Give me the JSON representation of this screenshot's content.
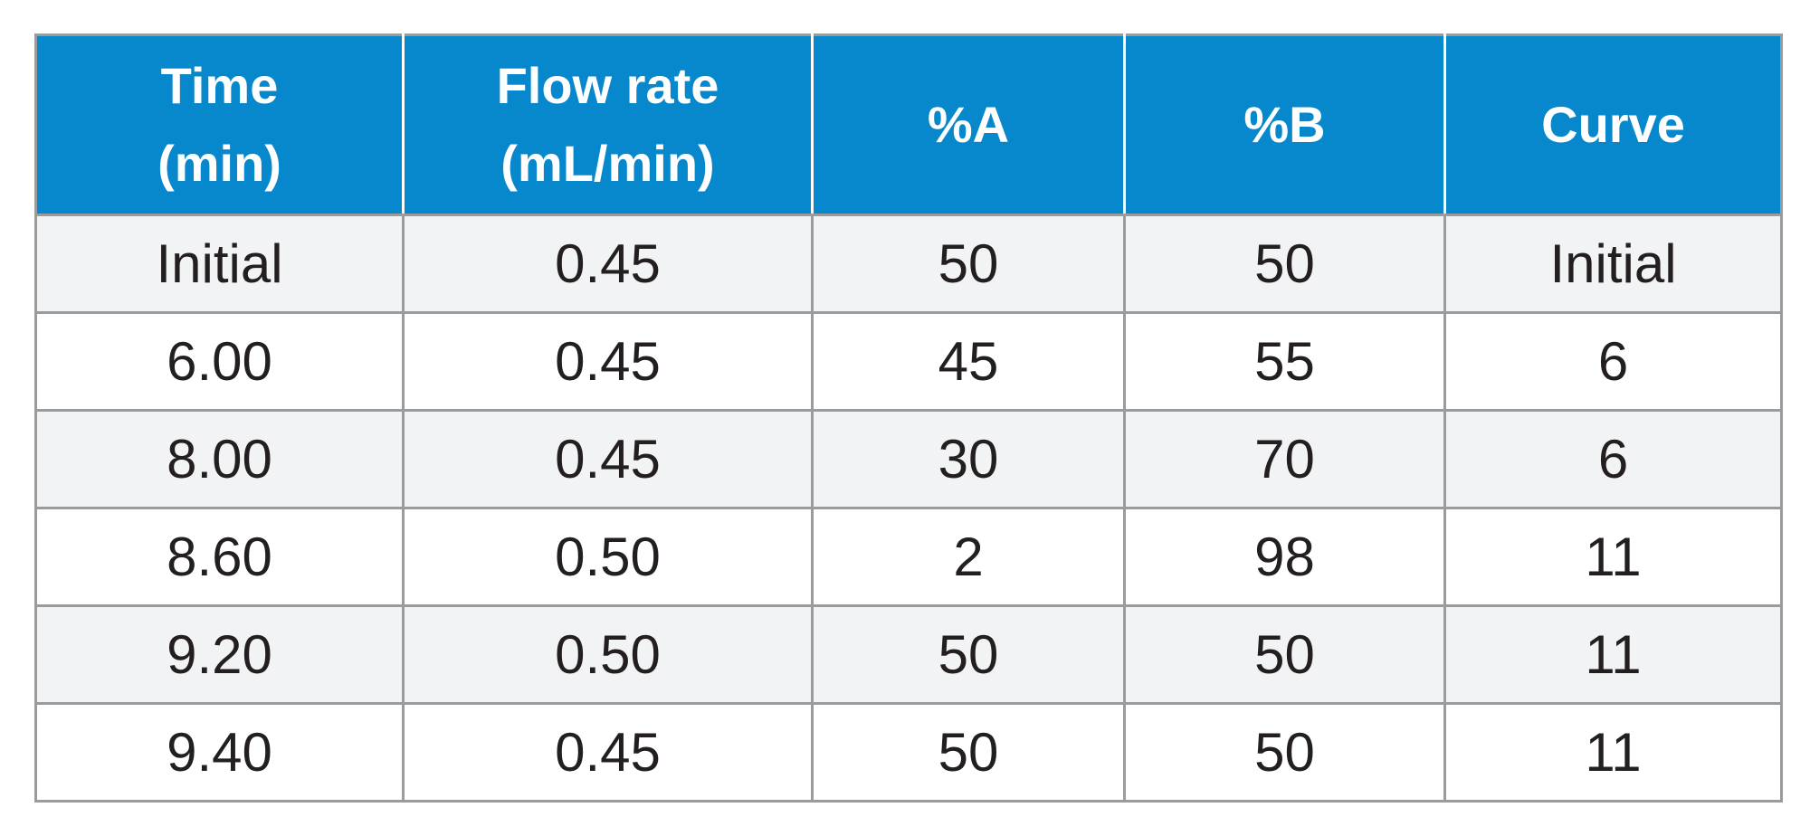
{
  "table": {
    "headers": [
      {
        "line1": "Time",
        "line2": "(min)"
      },
      {
        "line1": "Flow rate",
        "line2": "(mL/min)"
      },
      {
        "line1": "%A",
        "line2": ""
      },
      {
        "line1": "%B",
        "line2": ""
      },
      {
        "line1": "Curve",
        "line2": ""
      }
    ],
    "rows": [
      [
        "Initial",
        "0.45",
        "50",
        "50",
        "Initial"
      ],
      [
        "6.00",
        "0.45",
        "45",
        "55",
        "6"
      ],
      [
        "8.00",
        "0.45",
        "30",
        "70",
        "6"
      ],
      [
        "8.60",
        "0.50",
        "2",
        "98",
        "11"
      ],
      [
        "9.20",
        "0.50",
        "50",
        "50",
        "11"
      ],
      [
        "9.40",
        "0.45",
        "50",
        "50",
        "11"
      ]
    ]
  },
  "colors": {
    "header_background": "#0787cc",
    "header_text": "#ffffff",
    "row_shaded": "#f2f3f4",
    "row_plain": "#ffffff",
    "border": "#9a9b9d",
    "body_text": "#231f20"
  }
}
